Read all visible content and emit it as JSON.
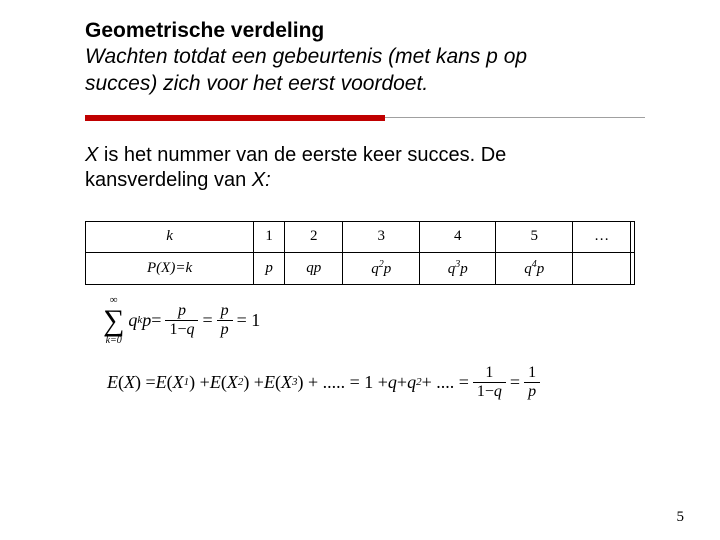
{
  "title": "Geometrische verdeling",
  "subtitle_line1": "Wachten totdat een gebeurtenis (met kans p op",
  "subtitle_line2": "succes) zich voor het eerst voordoet.",
  "paragraph_pre": " X",
  "paragraph_mid": " is het nummer van de eerste keer succes. De kansverdeling van ",
  "paragraph_x": "X:",
  "table": {
    "row1": {
      "c0": "k",
      "c1": "1",
      "c2": "2",
      "c3": "3",
      "c4": "4",
      "c5": "5",
      "c6": "…",
      "c7": ""
    },
    "row2": {
      "c0_a": "P",
      "c0_b": "(",
      "c0_c": "X",
      "c0_d": ")=",
      "c0_e": "k",
      "c1": "p",
      "c2": "qp",
      "c3_a": "q",
      "c3_b": "2",
      "c3_c": "p",
      "c4_a": "q",
      "c4_b": "3",
      "c4_c": "p",
      "c5_a": "q",
      "c5_b": "4",
      "c5_c": "p",
      "c6": "",
      "c7": ""
    }
  },
  "formula1": {
    "sigma_top": "∞",
    "sigma_bot": "k=0",
    "term": "q",
    "term_sup": "k",
    "term2": " p",
    "eq": " = ",
    "f1_num": "p",
    "f1_den_a": "1−",
    "f1_den_b": "q",
    "f2_num": "p",
    "f2_den": "p",
    "rhs": " = 1"
  },
  "formula2": {
    "lhs_a": "E",
    "lhs_b": "(",
    "lhs_c": "X",
    "lhs_d": ") = ",
    "t1a": "E",
    "t1b": "(",
    "t1c": "X",
    "t1d": "1",
    "t1e": ") + ",
    "t2a": "E",
    "t2b": "(",
    "t2c": "X",
    "t2d": "2",
    "t2e": ") + ",
    "t3a": "E",
    "t3b": "(",
    "t3c": "X",
    "t3d": "3",
    "t3e": ") + ..... = 1 + ",
    "q1": "q",
    "plus1": " + ",
    "q2": "q",
    "q2s": "2",
    "plus2": " + .... = ",
    "f1_num": "1",
    "f1_den_a": "1−",
    "f1_den_b": "q",
    "eq2": " = ",
    "f2_num": "1",
    "f2_den": "p"
  },
  "page_number": "5",
  "colors": {
    "accent": "#c00000",
    "rule_gray": "#a0a0a0",
    "text": "#000000",
    "bg": "#ffffff"
  }
}
